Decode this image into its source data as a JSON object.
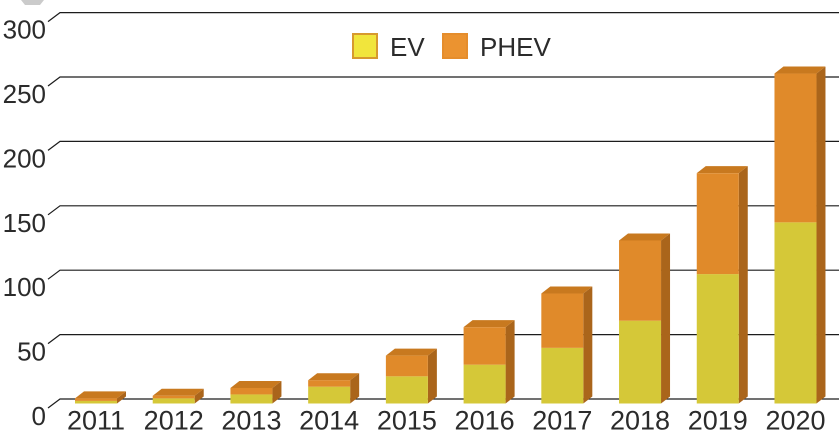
{
  "chart_data": {
    "type": "bar",
    "stacked": true,
    "style": "3d-stacked-column",
    "title": "",
    "xlabel": "",
    "ylabel": "",
    "categories": [
      "2011",
      "2012",
      "2013",
      "2014",
      "2015",
      "2016",
      "2017",
      "2018",
      "2019",
      "2020"
    ],
    "series": [
      {
        "name": "EV",
        "values": [
          2,
          4,
          7,
          13,
          21,
          30,
          43,
          64,
          100,
          140
        ]
      },
      {
        "name": "PHEV",
        "values": [
          2,
          2,
          5,
          5,
          16,
          29,
          42,
          62,
          78,
          115
        ]
      }
    ],
    "totals": [
      4,
      6,
      12,
      18,
      37,
      59,
      85,
      126,
      178,
      255
    ],
    "ylim": [
      0,
      300
    ],
    "yticks": [
      0,
      50,
      100,
      150,
      200,
      250,
      300
    ],
    "y_tick_labels": [
      "0",
      "50",
      "100",
      "150",
      "200",
      "250",
      "300"
    ],
    "grid": true,
    "legend_position": "top-center",
    "legend": [
      {
        "label": "EV"
      },
      {
        "label": "PHEV"
      }
    ],
    "colors": {
      "ev_front": "#d5c838",
      "phev_front": "#e08a2a",
      "top_face": "#c8791f",
      "side_face": "#aa651b",
      "legend_ev_fill": "#f1e53c",
      "legend_ev_border": "#d7992e",
      "legend_phev_fill": "#eb9330",
      "legend_phev_border": "#e58d2c",
      "gridline": "#1c1c1c",
      "text": "#2b2b2b",
      "background": "#ffffff",
      "crop_artifact": "#cbcbcb"
    }
  }
}
